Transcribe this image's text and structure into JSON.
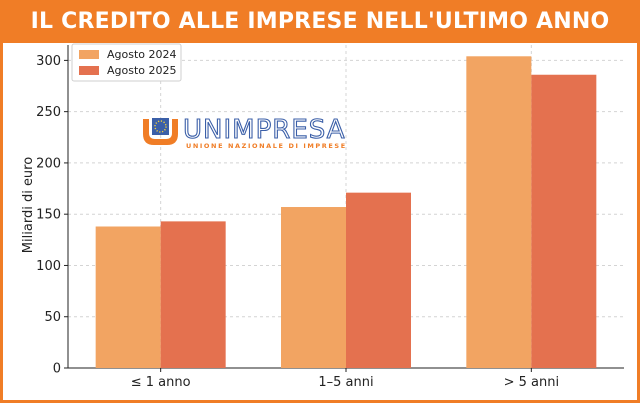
{
  "banner": {
    "title": "IL CREDITO ALLE IMPRESE NELL'ULTIMO ANNO"
  },
  "logo": {
    "name": "UNIMPRESA",
    "tagline": "UNIONE NAZIONALE DI IMPRESE"
  },
  "colors": {
    "accent": "#f07d26",
    "series_2024": "#f2a462",
    "series_2025": "#e4714f",
    "logo_blue": "#3b5fa8"
  },
  "chart_data": {
    "type": "bar",
    "title": "",
    "xlabel": "",
    "ylabel": "Miliardi di euro",
    "categories": [
      "≤ 1 anno",
      "1–5 anni",
      "> 5 anni"
    ],
    "series": [
      {
        "name": "Agosto 2024",
        "values": [
          138,
          157,
          304
        ]
      },
      {
        "name": "Agosto 2025",
        "values": [
          143,
          171,
          286
        ]
      }
    ],
    "ylim": [
      0,
      315
    ],
    "yticks": [
      0,
      50,
      100,
      150,
      200,
      250,
      300
    ],
    "grid": true,
    "legend": "top-left"
  }
}
